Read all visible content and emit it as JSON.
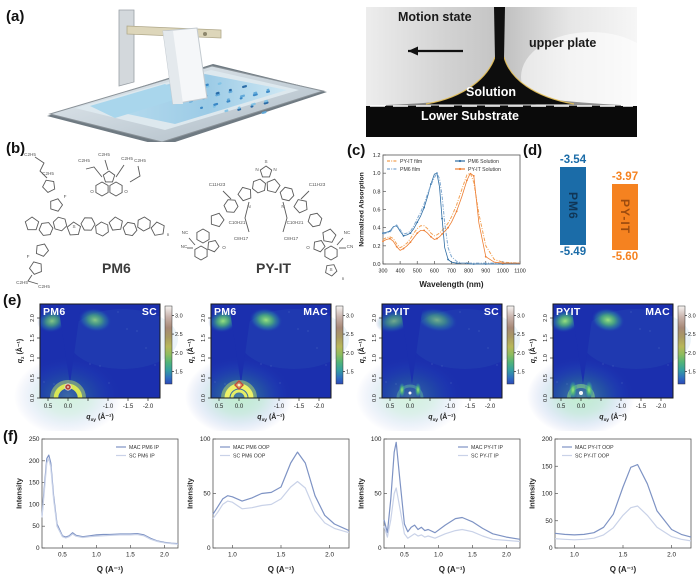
{
  "figure": {
    "panel_labels": {
      "a": "(a)",
      "b": "(b)",
      "c": "(c)",
      "d": "(d)",
      "e": "(e)",
      "f": "(f)"
    }
  },
  "panel_a": {
    "photo_labels": {
      "motion_state": "Motion state",
      "upper_plate": "upper plate",
      "solution": "Solution",
      "lower_substrate": "Lower Substrate"
    }
  },
  "panel_b": {
    "molecules": [
      {
        "name": "PM6"
      },
      {
        "name": "PY-IT"
      }
    ],
    "pm6_labels": [
      "C2H5",
      "C2H5",
      "C2H5",
      "C2H5",
      "C2H5",
      "C2H5",
      "C2H5",
      "C2H5",
      "F",
      "F",
      "O",
      "O",
      "S",
      "n"
    ],
    "pyit_labels": [
      "S",
      "N",
      "N",
      "N",
      "N",
      "NC",
      "NC",
      "O",
      "O",
      "NC",
      "CN",
      "C11H23",
      "C11H23",
      "C10H21",
      "C10H21",
      "C8H17",
      "C8H17",
      "S",
      "n"
    ]
  },
  "panel_d": {
    "levels": [
      {
        "name": "PM6",
        "lumo": "-3.54",
        "homo": "-5.49",
        "color": "#1b6ca8"
      },
      {
        "name": "PY-IT",
        "lumo": "-3.97",
        "homo": "-5.60",
        "color": "#f58220"
      }
    ]
  },
  "giwaxs": {
    "xlabel": "q_xy (Å⁻¹)",
    "ylabel": "q_z (Å⁻¹)",
    "xtick_values": [
      0.5,
      0.0,
      -1.0,
      -1.5,
      -2.0
    ],
    "xtick_labels": [
      "0.5",
      "0.0",
      "-1.0",
      "-1.5",
      "-2.0"
    ],
    "ytick_values": [
      0.0,
      0.5,
      1.0,
      1.5,
      2.0
    ],
    "ytick_labels": [
      "0.0",
      "0.5",
      "1.0",
      "1.5",
      "2.0"
    ],
    "colorbar_ticks": [
      "3.0",
      "2.5",
      "2.0",
      "1.5"
    ],
    "background_color": "#1b2fae",
    "panels": [
      {
        "material": "PM6",
        "method": "SC",
        "ring": "bright",
        "core": "red-dot",
        "blobs": "medium"
      },
      {
        "material": "PM6",
        "method": "MAC",
        "ring": "double",
        "core": "red-diamond",
        "blobs": "bright"
      },
      {
        "material": "PYIT",
        "method": "SC",
        "ring": "spots",
        "core": "white-dot",
        "blobs": "broad"
      },
      {
        "material": "PYIT",
        "method": "MAC",
        "ring": "spots-bright",
        "core": "white-dot",
        "blobs": "bright"
      }
    ]
  },
  "chart_data": [
    {
      "id": "absorption",
      "type": "line",
      "xlabel": "Wavelength (nm)",
      "ylabel": "Normalized Absorption",
      "xlim": [
        300,
        1100
      ],
      "ylim": [
        0,
        1.2
      ],
      "xticks": [
        300,
        400,
        500,
        600,
        700,
        800,
        900,
        1000,
        1100
      ],
      "yticks": [
        0.0,
        0.2,
        0.4,
        0.6,
        0.8,
        1.0,
        1.2
      ],
      "xtick_dec": 0,
      "ytick_dec": 1,
      "legend_position": "top",
      "legend_cols": 2,
      "grid": false,
      "x": [
        300,
        320,
        340,
        360,
        380,
        400,
        420,
        440,
        460,
        480,
        500,
        520,
        540,
        560,
        580,
        600,
        615,
        630,
        645,
        660,
        680,
        700,
        730,
        760,
        790,
        810,
        830,
        860,
        900,
        950,
        1000,
        1100
      ],
      "series": [
        {
          "name": "PY-IT film",
          "color": "#f2a154",
          "style": "dashdot",
          "values": [
            0.27,
            0.29,
            0.3,
            0.28,
            0.22,
            0.18,
            0.2,
            0.23,
            0.28,
            0.34,
            0.39,
            0.42,
            0.42,
            0.39,
            0.34,
            0.31,
            0.32,
            0.34,
            0.37,
            0.4,
            0.45,
            0.52,
            0.65,
            0.82,
            0.98,
            1.0,
            0.9,
            0.55,
            0.2,
            0.05,
            0.02,
            0.01
          ]
        },
        {
          "name": "PM6 Solution",
          "color": "#2e6da4",
          "style": "markers",
          "values": [
            0.34,
            0.35,
            0.36,
            0.41,
            0.42,
            0.36,
            0.31,
            0.32,
            0.34,
            0.39,
            0.46,
            0.53,
            0.62,
            0.74,
            0.88,
            0.99,
            1.0,
            0.85,
            0.5,
            0.18,
            0.05,
            0.02,
            0.01,
            0.01,
            0.01,
            0.0,
            0.0,
            0.0,
            0.0,
            0.0,
            0.0,
            0.0
          ]
        },
        {
          "name": "PM6 film",
          "color": "#7fa8d0",
          "style": "dashdot",
          "values": [
            0.33,
            0.34,
            0.35,
            0.4,
            0.43,
            0.38,
            0.33,
            0.34,
            0.36,
            0.42,
            0.5,
            0.57,
            0.66,
            0.77,
            0.87,
            0.95,
            1.0,
            0.94,
            0.75,
            0.45,
            0.18,
            0.08,
            0.03,
            0.01,
            0.01,
            0.01,
            0.01,
            0.01,
            0.01,
            0.01,
            0.01,
            0.01
          ]
        },
        {
          "name": "PY-IT Solution",
          "color": "#ed7d31",
          "style": "markers",
          "values": [
            0.25,
            0.27,
            0.28,
            0.25,
            0.19,
            0.15,
            0.17,
            0.2,
            0.24,
            0.29,
            0.34,
            0.37,
            0.37,
            0.34,
            0.3,
            0.27,
            0.28,
            0.3,
            0.33,
            0.36,
            0.4,
            0.46,
            0.58,
            0.74,
            0.92,
            1.0,
            0.97,
            0.45,
            0.08,
            0.02,
            0.01,
            0.01
          ]
        }
      ]
    },
    {
      "id": "pm6_ip",
      "type": "line",
      "xlabel": "Q (A⁻¹)",
      "ylabel": "Intensity",
      "xlim": [
        0.2,
        2.2
      ],
      "ylim": [
        0,
        250
      ],
      "xticks": [
        0.5,
        1.0,
        1.5,
        2.0
      ],
      "yticks": [
        0,
        50,
        100,
        150,
        200,
        250
      ],
      "xtick_dec": 1,
      "ytick_dec": 0,
      "legend_position": "top-right",
      "grid": false,
      "x": [
        0.2,
        0.24,
        0.27,
        0.3,
        0.33,
        0.37,
        0.42,
        0.5,
        0.55,
        0.6,
        0.65,
        0.7,
        0.8,
        0.9,
        1.0,
        1.1,
        1.2,
        1.35,
        1.5,
        1.6,
        1.7,
        1.8,
        1.9,
        2.0,
        2.1,
        2.2
      ],
      "series": [
        {
          "name": "MAC PM6 IP",
          "color": "#7e93c4",
          "style": "solid",
          "values": [
            75,
            150,
            205,
            213,
            195,
            120,
            55,
            28,
            25,
            28,
            35,
            29,
            26,
            28,
            30,
            31,
            31,
            32,
            32,
            33,
            30,
            22,
            16,
            13,
            11,
            10
          ]
        },
        {
          "name": "SC PM6 IP",
          "color": "#c9d2e8",
          "style": "solid",
          "values": [
            70,
            140,
            195,
            205,
            185,
            112,
            50,
            26,
            23,
            26,
            32,
            27,
            24,
            26,
            27,
            28,
            29,
            30,
            30,
            31,
            28,
            20,
            15,
            12,
            10,
            9
          ]
        }
      ]
    },
    {
      "id": "pm6_oop",
      "type": "line",
      "xlabel": "Q (A⁻¹)",
      "ylabel": "Intensity",
      "xlim": [
        0.8,
        2.2
      ],
      "ylim": [
        0,
        100
      ],
      "xticks": [
        1.0,
        1.5,
        2.0
      ],
      "yticks": [
        0,
        50,
        100
      ],
      "xtick_dec": 1,
      "ytick_dec": 0,
      "legend_position": "top-left",
      "grid": false,
      "x": [
        0.8,
        0.85,
        0.9,
        0.95,
        1.0,
        1.1,
        1.2,
        1.3,
        1.4,
        1.5,
        1.6,
        1.67,
        1.75,
        1.85,
        1.95,
        2.05,
        2.2
      ],
      "series": [
        {
          "name": "MAC PM6 OOP",
          "color": "#7e93c4",
          "style": "solid",
          "values": [
            31,
            38,
            45,
            48,
            47,
            43,
            46,
            50,
            51,
            56,
            78,
            88,
            78,
            48,
            30,
            22,
            16
          ]
        },
        {
          "name": "SC PM6 OOP",
          "color": "#c9d2e8",
          "style": "solid",
          "values": [
            27,
            33,
            40,
            43,
            42,
            36,
            37,
            39,
            40,
            45,
            56,
            61,
            55,
            34,
            23,
            18,
            14
          ]
        }
      ]
    },
    {
      "id": "pyit_ip",
      "type": "line",
      "xlabel": "Q (A⁻¹)",
      "ylabel": "Intensity",
      "xlim": [
        0.2,
        2.2
      ],
      "ylim": [
        0,
        100
      ],
      "xticks": [
        0.5,
        1.0,
        1.5,
        2.0
      ],
      "yticks": [
        0,
        50,
        100
      ],
      "xtick_dec": 1,
      "ytick_dec": 0,
      "legend_position": "top-right",
      "grid": false,
      "x": [
        0.2,
        0.25,
        0.3,
        0.35,
        0.38,
        0.43,
        0.5,
        0.55,
        0.6,
        0.65,
        0.7,
        0.75,
        0.8,
        0.85,
        0.95,
        1.1,
        1.25,
        1.35,
        1.5,
        1.65,
        1.8,
        2.0,
        2.2
      ],
      "series": [
        {
          "name": "MAC PY-IT IP",
          "color": "#7e93c4",
          "style": "solid",
          "values": [
            26,
            14,
            45,
            88,
            97,
            65,
            22,
            15,
            19,
            21,
            17,
            19,
            16,
            17,
            14,
            21,
            27,
            28,
            24,
            18,
            13,
            10,
            8
          ]
        },
        {
          "name": "SC PY-IT IP",
          "color": "#c9d2e8",
          "style": "solid",
          "values": [
            20,
            10,
            26,
            50,
            55,
            38,
            13,
            9,
            11,
            13,
            11,
            12,
            10,
            11,
            9,
            13,
            16,
            17,
            15,
            11,
            8,
            7,
            6
          ]
        }
      ]
    },
    {
      "id": "pyit_oop",
      "type": "line",
      "xlabel": "Q (A⁻¹)",
      "ylabel": "Intensity",
      "xlim": [
        0.8,
        2.2
      ],
      "ylim": [
        0,
        200
      ],
      "xticks": [
        1.0,
        1.5,
        2.0
      ],
      "yticks": [
        0,
        50,
        100,
        150,
        200
      ],
      "xtick_dec": 1,
      "ytick_dec": 0,
      "legend_position": "top-left",
      "grid": false,
      "x": [
        0.8,
        0.9,
        1.0,
        1.1,
        1.2,
        1.3,
        1.4,
        1.5,
        1.58,
        1.65,
        1.75,
        1.85,
        2.0,
        2.1,
        2.2
      ],
      "series": [
        {
          "name": "MAC PY-IT OOP",
          "color": "#7e93c4",
          "style": "solid",
          "values": [
            27,
            25,
            24,
            25,
            28,
            38,
            62,
            112,
            148,
            153,
            118,
            68,
            34,
            25,
            20
          ]
        },
        {
          "name": "SC PY-IT OOP",
          "color": "#c9d2e8",
          "style": "solid",
          "values": [
            17,
            16,
            15,
            16,
            18,
            24,
            37,
            60,
            74,
            77,
            60,
            38,
            21,
            16,
            13
          ]
        }
      ]
    }
  ]
}
